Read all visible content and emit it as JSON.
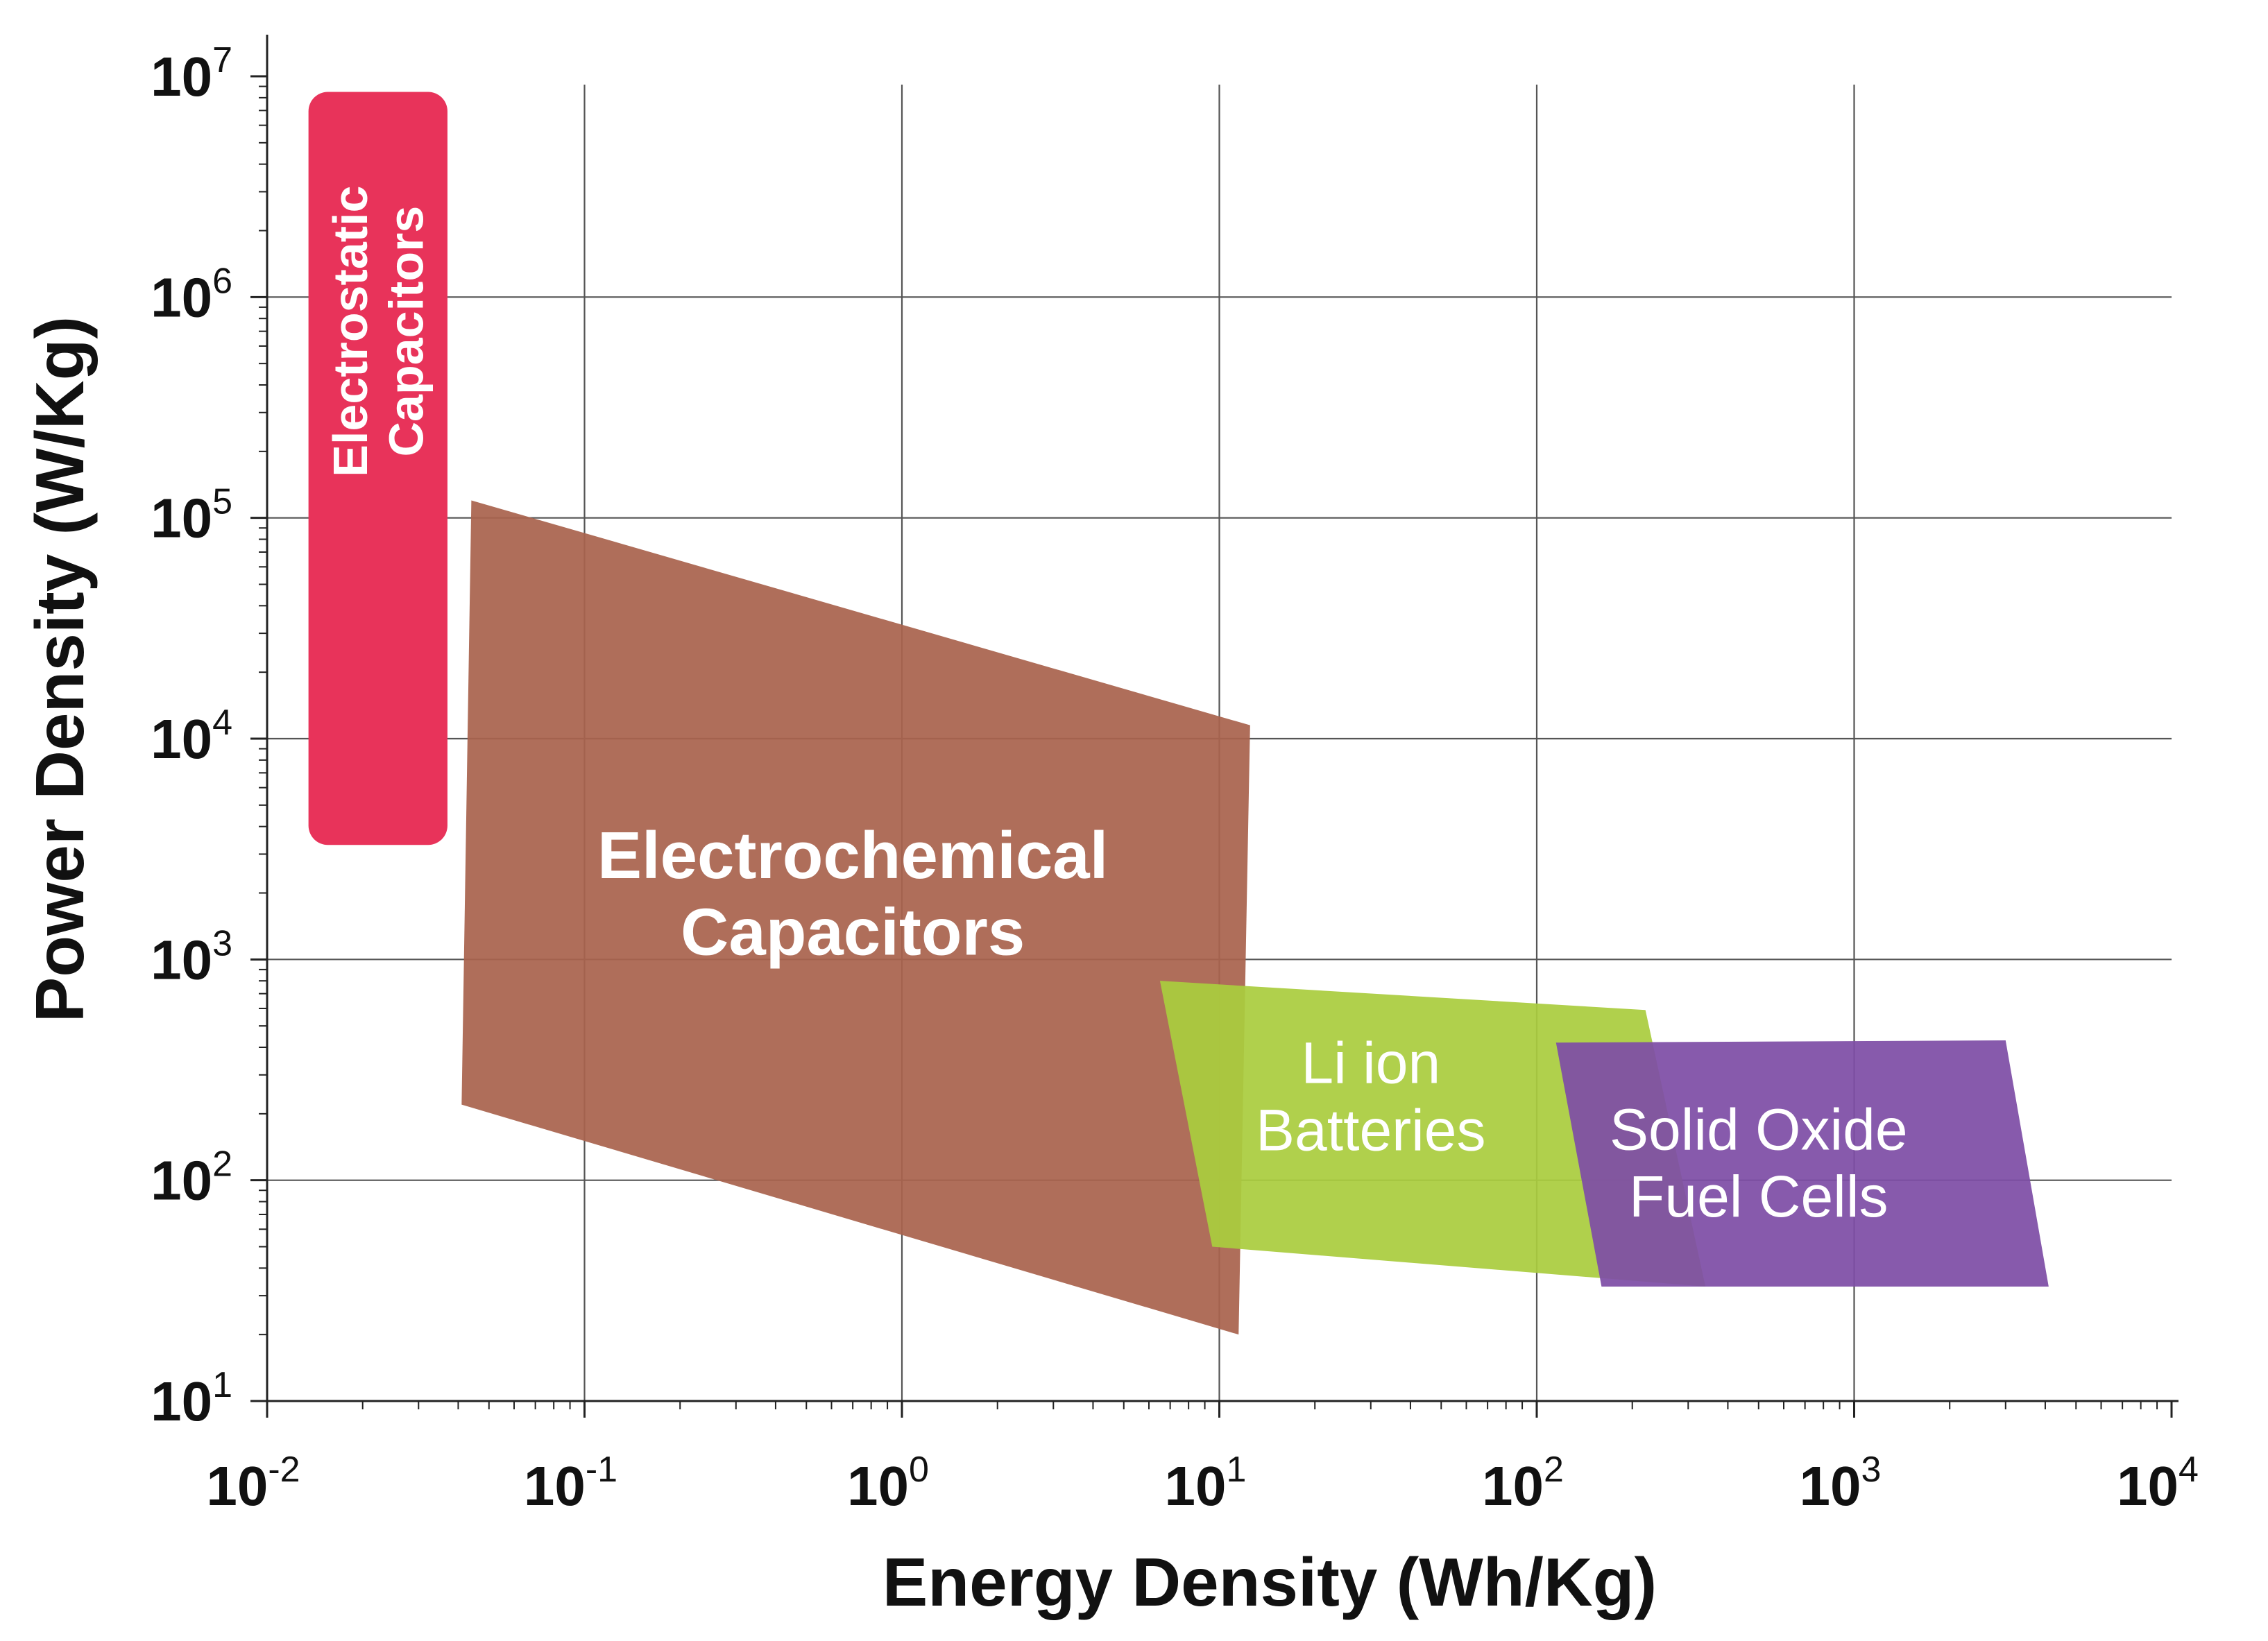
{
  "chart_data": {
    "type": "region-plot",
    "title": "",
    "xlabel": "Energy Density (Wh/Kg)",
    "ylabel": "Power Density (W/Kg)",
    "xscale": "log",
    "yscale": "log",
    "xlim": [
      0.01,
      10000
    ],
    "ylim": [
      10,
      10000000
    ],
    "grid": true,
    "x_ticks": [
      {
        "base": "10",
        "exp": "-2",
        "value": 0.01
      },
      {
        "base": "10",
        "exp": "-1",
        "value": 0.1
      },
      {
        "base": "10",
        "exp": "0",
        "value": 1
      },
      {
        "base": "10",
        "exp": "1",
        "value": 10
      },
      {
        "base": "10",
        "exp": "2",
        "value": 100
      },
      {
        "base": "10",
        "exp": "3",
        "value": 1000
      },
      {
        "base": "10",
        "exp": "4",
        "value": 10000
      }
    ],
    "y_ticks": [
      {
        "base": "10",
        "exp": "1",
        "value": 10
      },
      {
        "base": "10",
        "exp": "2",
        "value": 100
      },
      {
        "base": "10",
        "exp": "3",
        "value": 1000
      },
      {
        "base": "10",
        "exp": "4",
        "value": 10000
      },
      {
        "base": "10",
        "exp": "5",
        "value": 100000
      },
      {
        "base": "10",
        "exp": "6",
        "value": 1000000
      },
      {
        "base": "10",
        "exp": "7",
        "value": 10000000
      }
    ],
    "regions": [
      {
        "name": "electrostatic-capacitors",
        "label_lines": [
          "Electrostatic",
          "Capacitors"
        ],
        "color": "#E8335A",
        "shape": "rounded-rect",
        "label_rotated": true,
        "polygon": [
          [
            0.0135,
            8500000
          ],
          [
            0.037,
            8500000
          ],
          [
            0.037,
            3300
          ],
          [
            0.0135,
            3300
          ]
        ]
      },
      {
        "name": "electrochemical-capacitors",
        "label_lines": [
          "Electrochemical",
          "Capacitors"
        ],
        "color": "#A9634E",
        "label_bold": true,
        "label_at": [
          0.7,
          2000
        ],
        "polygon": [
          [
            0.044,
            120000
          ],
          [
            12.5,
            11500
          ],
          [
            11.5,
            20
          ],
          [
            0.041,
            220
          ]
        ]
      },
      {
        "name": "li-ion-batteries",
        "label_lines": [
          "Li ion",
          "Batteries"
        ],
        "color": "#AACC3E",
        "label_at": [
          30,
          240
        ],
        "polygon": [
          [
            6.5,
            800
          ],
          [
            220,
            590
          ],
          [
            340,
            33
          ],
          [
            9.5,
            50
          ]
        ]
      },
      {
        "name": "solid-oxide-fuel-cells",
        "label_lines": [
          "Solid Oxide",
          "Fuel Cells"
        ],
        "color": "#7E4EA6",
        "label_at": [
          500,
          120
        ],
        "polygon": [
          [
            115,
            420
          ],
          [
            3000,
            430
          ],
          [
            4100,
            33
          ],
          [
            160,
            33
          ]
        ]
      }
    ]
  }
}
